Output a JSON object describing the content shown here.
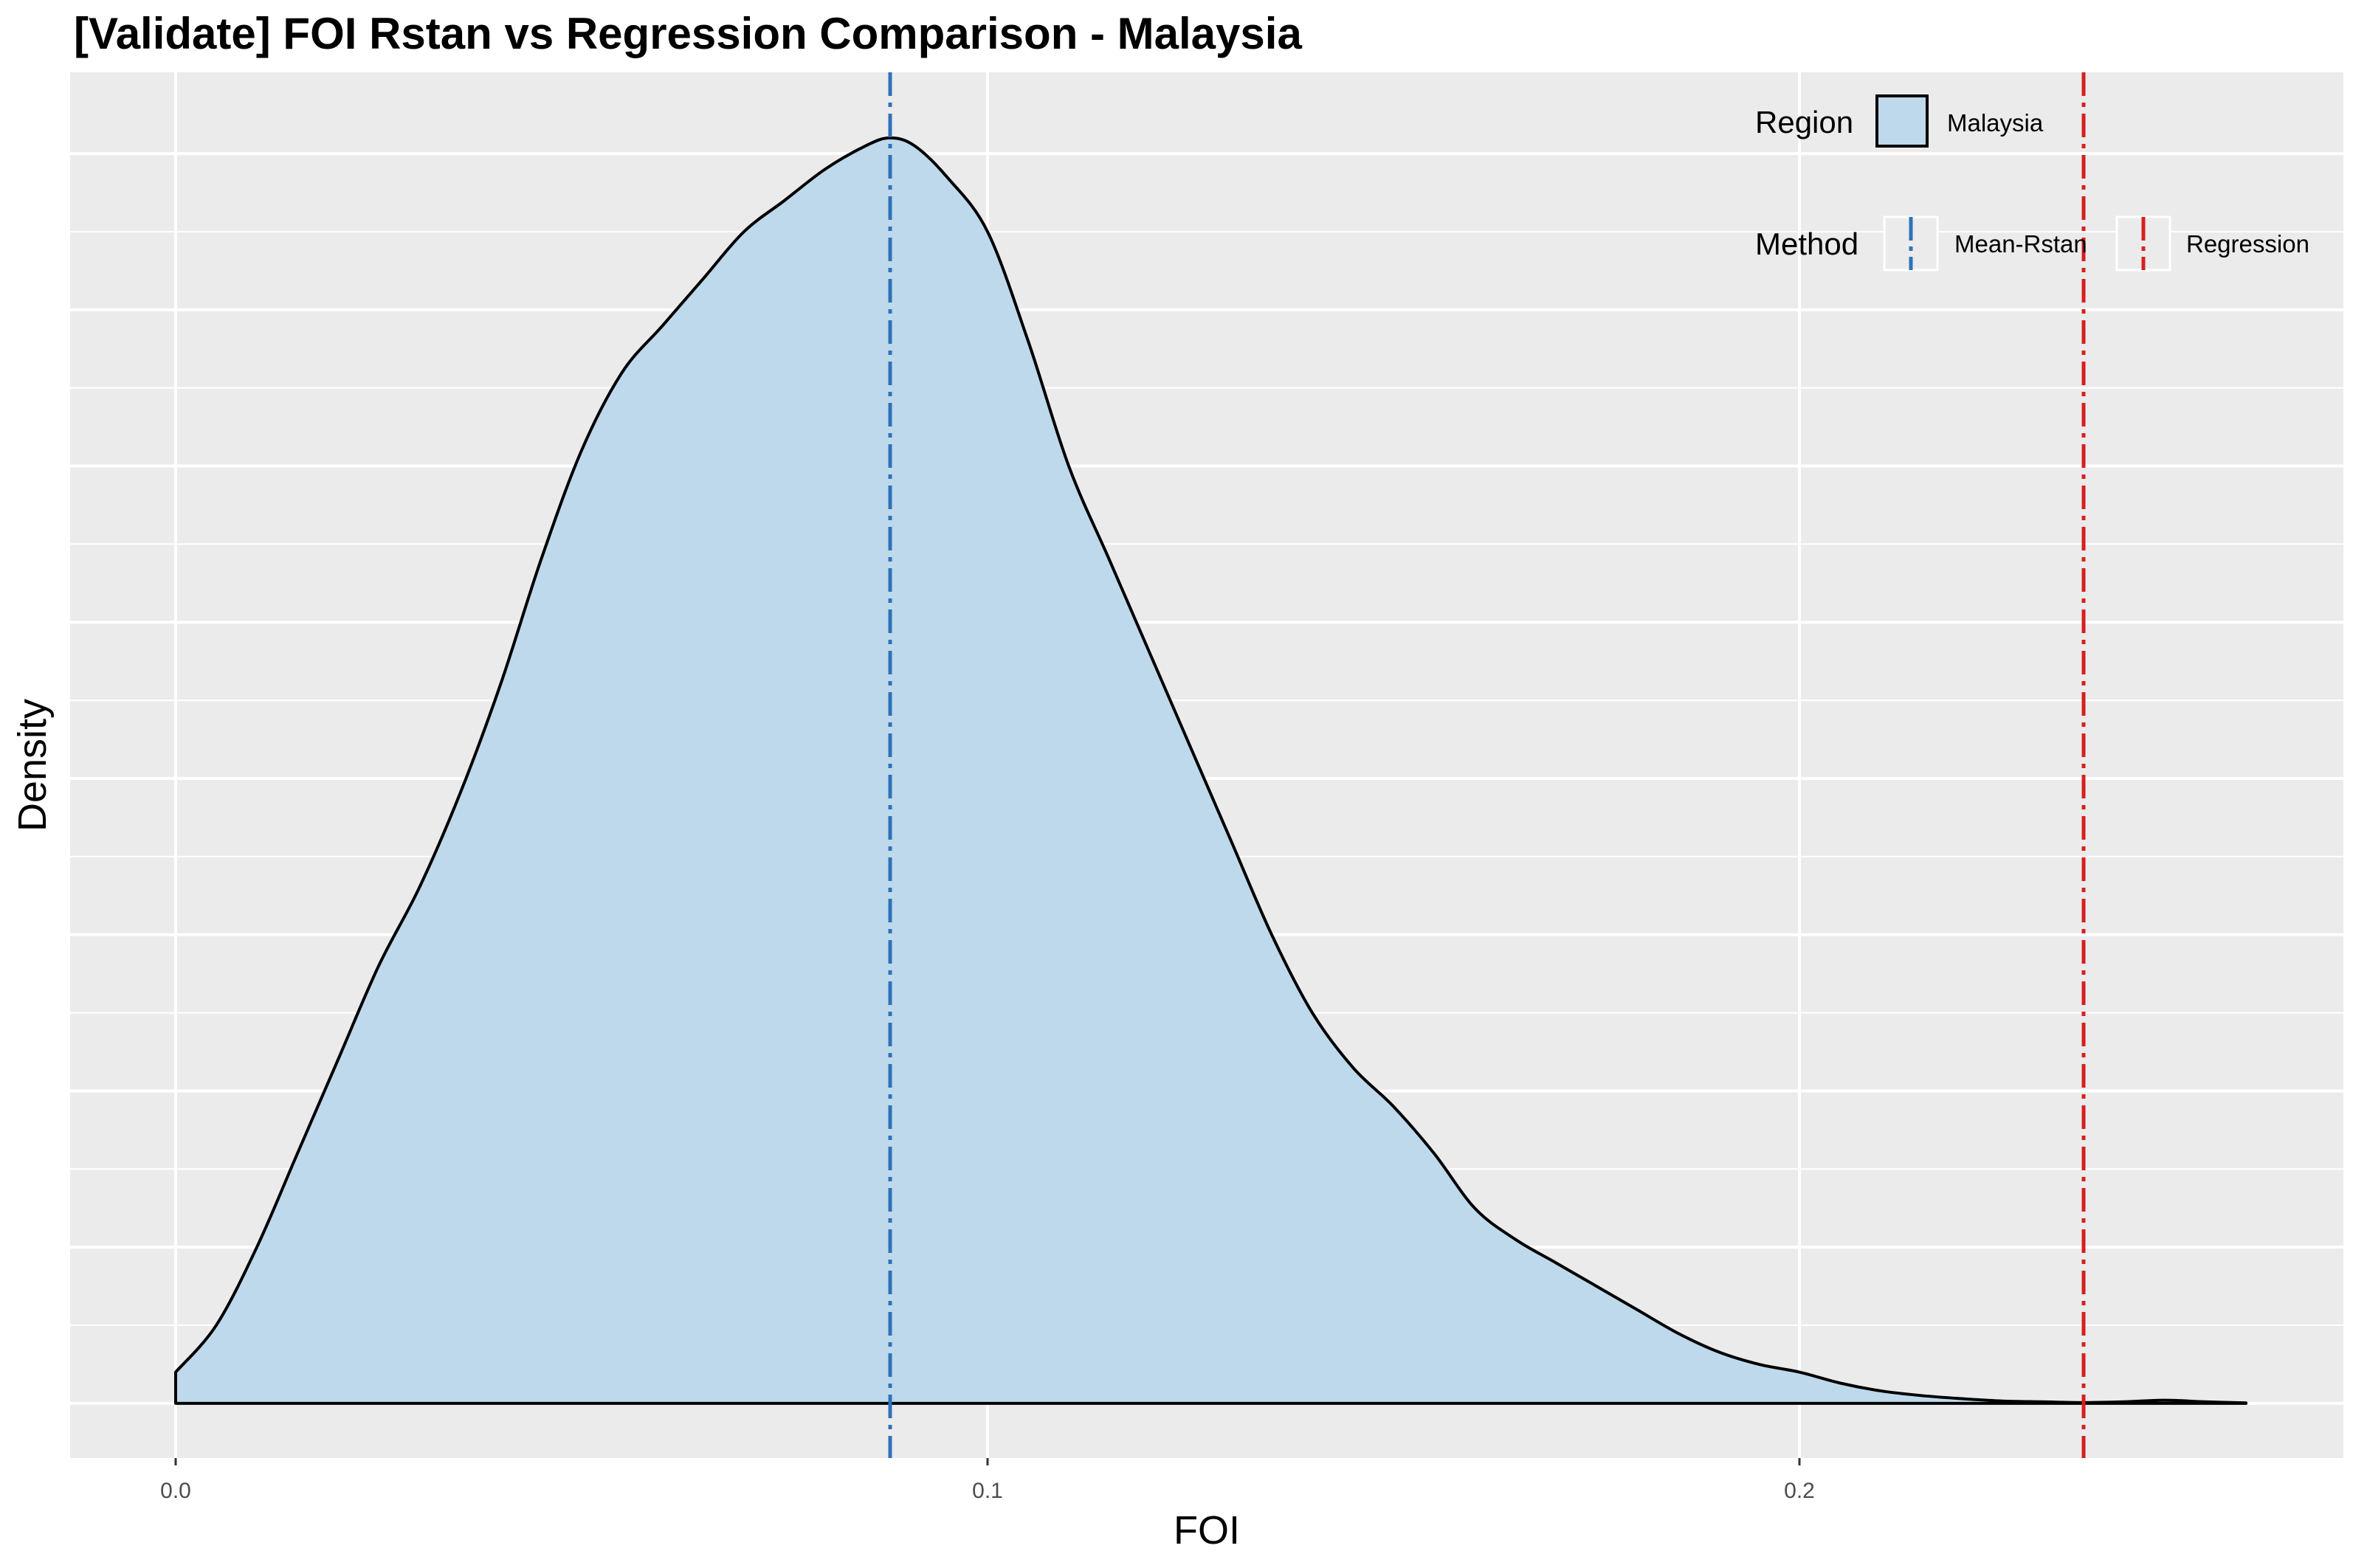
{
  "chart_data": {
    "type": "area",
    "title": "[Validate] FOI Rstan vs Regression Comparison - Malaysia",
    "xlabel": "FOI",
    "ylabel": "Density",
    "xlim": [
      -0.013,
      0.267
    ],
    "ylim": [
      -0.35,
      8.52
    ],
    "x_ticks": [
      0.0,
      0.1,
      0.2
    ],
    "x_tick_labels": [
      "0.0",
      "0.1",
      "0.2"
    ],
    "grid": true,
    "legend_position": "top-right",
    "colors": {
      "panel_bg": "#ebebeb",
      "grid": "#ffffff",
      "fill": "#bed9ec",
      "outline": "#000000",
      "mean_rstan": "#2f72b8",
      "regression": "#d6201f"
    },
    "legend": {
      "region_title": "Region",
      "region_label": "Malaysia",
      "method_title": "Method",
      "method_labels": [
        "Mean-Rstan",
        "Regression"
      ]
    },
    "series": [
      {
        "name": "Malaysia",
        "x": [
          0.0,
          0.005,
          0.01,
          0.015,
          0.02,
          0.025,
          0.03,
          0.035,
          0.04,
          0.045,
          0.05,
          0.055,
          0.06,
          0.065,
          0.07,
          0.075,
          0.08,
          0.085,
          0.088,
          0.091,
          0.095,
          0.1,
          0.105,
          0.11,
          0.115,
          0.12,
          0.125,
          0.13,
          0.135,
          0.14,
          0.145,
          0.15,
          0.155,
          0.16,
          0.165,
          0.17,
          0.175,
          0.18,
          0.185,
          0.19,
          0.195,
          0.2,
          0.205,
          0.21,
          0.215,
          0.22,
          0.225,
          0.23,
          0.235,
          0.24,
          0.245,
          0.25,
          0.255
        ],
        "y": [
          0.2,
          0.5,
          1.0,
          1.6,
          2.2,
          2.8,
          3.3,
          3.9,
          4.6,
          5.4,
          6.1,
          6.6,
          6.9,
          7.2,
          7.5,
          7.7,
          7.9,
          8.05,
          8.1,
          8.05,
          7.85,
          7.5,
          6.8,
          6.0,
          5.4,
          4.8,
          4.2,
          3.6,
          3.0,
          2.5,
          2.15,
          1.9,
          1.6,
          1.25,
          1.05,
          0.9,
          0.75,
          0.6,
          0.45,
          0.33,
          0.25,
          0.2,
          0.13,
          0.08,
          0.05,
          0.03,
          0.015,
          0.01,
          0.005,
          0.01,
          0.02,
          0.01,
          0.003
        ]
      }
    ],
    "vlines": [
      {
        "name": "Mean-Rstan",
        "x": 0.088
      },
      {
        "name": "Regression",
        "x": 0.235
      }
    ]
  }
}
